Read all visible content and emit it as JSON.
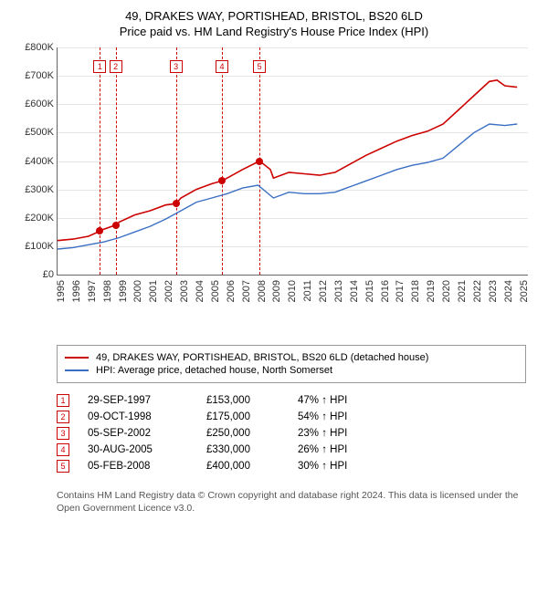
{
  "title_line1": "49, DRAKES WAY, PORTISHEAD, BRISTOL, BS20 6LD",
  "title_line2": "Price paid vs. HM Land Registry's House Price Index (HPI)",
  "chart": {
    "type": "line",
    "background_color": "#ffffff",
    "grid_color": "#e5e5e5",
    "axis_color": "#666666",
    "y": {
      "min": 0,
      "max": 800000,
      "ticks": [
        0,
        100000,
        200000,
        300000,
        400000,
        500000,
        600000,
        700000,
        800000
      ],
      "labels": [
        "£0",
        "£100K",
        "£200K",
        "£300K",
        "£400K",
        "£500K",
        "£600K",
        "£700K",
        "£800K"
      ],
      "label_fontsize": 11
    },
    "x": {
      "min": 1995,
      "max": 2025.5,
      "ticks": [
        1995,
        1996,
        1997,
        1998,
        1999,
        2000,
        2001,
        2002,
        2003,
        2004,
        2005,
        2006,
        2007,
        2008,
        2009,
        2010,
        2011,
        2012,
        2013,
        2014,
        2015,
        2016,
        2017,
        2018,
        2019,
        2020,
        2021,
        2022,
        2023,
        2024,
        2025
      ],
      "label_fontsize": 11
    },
    "series": [
      {
        "name": "49, DRAKES WAY, PORTISHEAD, BRISTOL, BS20 6LD (detached house)",
        "color": "#cc0000",
        "line_width": 1.6,
        "points": [
          [
            1995,
            120000
          ],
          [
            1996,
            125000
          ],
          [
            1997,
            135000
          ],
          [
            1997.75,
            153000
          ],
          [
            1998,
            160000
          ],
          [
            1998.8,
            175000
          ],
          [
            1999,
            185000
          ],
          [
            2000,
            210000
          ],
          [
            2001,
            225000
          ],
          [
            2002,
            245000
          ],
          [
            2002.68,
            250000
          ],
          [
            2003,
            270000
          ],
          [
            2004,
            300000
          ],
          [
            2005,
            320000
          ],
          [
            2005.66,
            330000
          ],
          [
            2006,
            340000
          ],
          [
            2007,
            370000
          ],
          [
            2008.1,
            400000
          ],
          [
            2008.8,
            370000
          ],
          [
            2009,
            340000
          ],
          [
            2010,
            360000
          ],
          [
            2011,
            355000
          ],
          [
            2012,
            350000
          ],
          [
            2013,
            360000
          ],
          [
            2014,
            390000
          ],
          [
            2015,
            420000
          ],
          [
            2016,
            445000
          ],
          [
            2017,
            470000
          ],
          [
            2018,
            490000
          ],
          [
            2019,
            505000
          ],
          [
            2020,
            530000
          ],
          [
            2021,
            580000
          ],
          [
            2022,
            630000
          ],
          [
            2023,
            680000
          ],
          [
            2023.5,
            685000
          ],
          [
            2024,
            665000
          ],
          [
            2024.8,
            660000
          ]
        ]
      },
      {
        "name": "HPI: Average price, detached house, North Somerset",
        "color": "#3b6fc4",
        "line_width": 1.4,
        "points": [
          [
            1995,
            90000
          ],
          [
            1996,
            95000
          ],
          [
            1997,
            105000
          ],
          [
            1998,
            115000
          ],
          [
            1999,
            130000
          ],
          [
            2000,
            150000
          ],
          [
            2001,
            170000
          ],
          [
            2002,
            195000
          ],
          [
            2003,
            225000
          ],
          [
            2004,
            255000
          ],
          [
            2005,
            270000
          ],
          [
            2006,
            285000
          ],
          [
            2007,
            305000
          ],
          [
            2008,
            315000
          ],
          [
            2009,
            270000
          ],
          [
            2010,
            290000
          ],
          [
            2011,
            285000
          ],
          [
            2012,
            285000
          ],
          [
            2013,
            290000
          ],
          [
            2014,
            310000
          ],
          [
            2015,
            330000
          ],
          [
            2016,
            350000
          ],
          [
            2017,
            370000
          ],
          [
            2018,
            385000
          ],
          [
            2019,
            395000
          ],
          [
            2020,
            410000
          ],
          [
            2021,
            455000
          ],
          [
            2022,
            500000
          ],
          [
            2023,
            530000
          ],
          [
            2024,
            525000
          ],
          [
            2024.8,
            530000
          ]
        ]
      }
    ],
    "sale_markers": {
      "line_color": "#d00000",
      "box_border": "#cc0000",
      "box_text_color": "#cc0000",
      "dot_color": "#cc0000",
      "points": [
        {
          "n": "1",
          "year": 1997.75,
          "price": 153000
        },
        {
          "n": "2",
          "year": 1998.77,
          "price": 175000
        },
        {
          "n": "3",
          "year": 2002.68,
          "price": 250000
        },
        {
          "n": "4",
          "year": 2005.66,
          "price": 330000
        },
        {
          "n": "5",
          "year": 2008.1,
          "price": 400000
        }
      ]
    }
  },
  "legend": [
    {
      "color": "#cc0000",
      "label": "49, DRAKES WAY, PORTISHEAD, BRISTOL, BS20 6LD (detached house)"
    },
    {
      "color": "#3b6fc4",
      "label": "HPI: Average price, detached house, North Somerset"
    }
  ],
  "sales": [
    {
      "n": "1",
      "date": "29-SEP-1997",
      "price": "£153,000",
      "delta": "47% ↑ HPI"
    },
    {
      "n": "2",
      "date": "09-OCT-1998",
      "price": "£175,000",
      "delta": "54% ↑ HPI"
    },
    {
      "n": "3",
      "date": "05-SEP-2002",
      "price": "£250,000",
      "delta": "23% ↑ HPI"
    },
    {
      "n": "4",
      "date": "30-AUG-2005",
      "price": "£330,000",
      "delta": "26% ↑ HPI"
    },
    {
      "n": "5",
      "date": "05-FEB-2008",
      "price": "£400,000",
      "delta": "30% ↑ HPI"
    }
  ],
  "sales_box_color": "#cc0000",
  "attribution": "Contains HM Land Registry data © Crown copyright and database right 2024. This data is licensed under the Open Government Licence v3.0."
}
